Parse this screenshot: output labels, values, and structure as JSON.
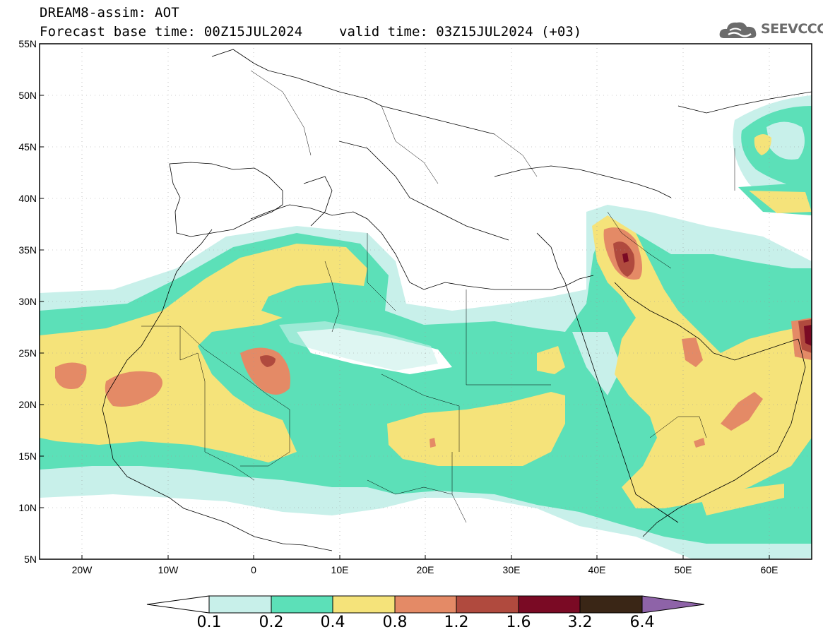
{
  "header": {
    "model_title": "DREAM8-assim: AOT",
    "forecast_base": "Forecast base time: 00Z15JUL2024",
    "valid_time": "valid time: 03Z15JUL2024 (+03)",
    "logo_text": "SEEVCCC",
    "logo_icon": "cloud-icon"
  },
  "map": {
    "type": "filled-contour-map",
    "variable": "AOT",
    "lat_labels": [
      "55N",
      "50N",
      "45N",
      "40N",
      "35N",
      "30N",
      "25N",
      "20N",
      "15N",
      "10N",
      "5N"
    ],
    "lon_labels": [
      "20W",
      "10W",
      "0",
      "10E",
      "20E",
      "30E",
      "40E",
      "50E",
      "60E"
    ]
  },
  "colorbar": {
    "labels": [
      "0.1",
      "0.2",
      "0.4",
      "0.8",
      "1.2",
      "1.6",
      "3.2",
      "6.4"
    ],
    "colors": [
      "#ffffff",
      "#c8f0ea",
      "#5ce0b8",
      "#f5e37a",
      "#e48a66",
      "#b04a3e",
      "#7a0a24",
      "#3a2616",
      "#8e63a8"
    ]
  }
}
